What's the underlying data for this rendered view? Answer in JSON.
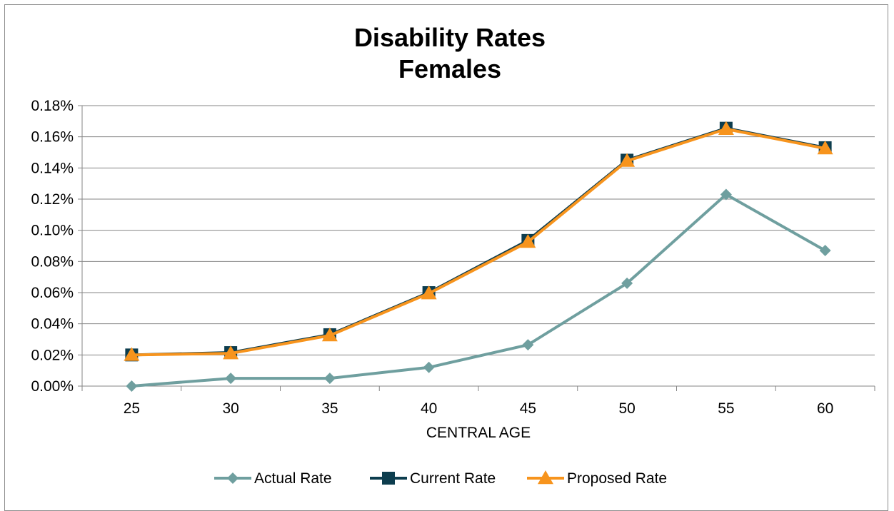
{
  "chart_data": {
    "type": "line",
    "title": [
      "Disability Rates",
      "Females"
    ],
    "xlabel": "CENTRAL AGE",
    "ylabel": "",
    "x": [
      25,
      30,
      35,
      40,
      45,
      50,
      55,
      60
    ],
    "categories": [
      "25",
      "30",
      "35",
      "40",
      "45",
      "50",
      "55",
      "60"
    ],
    "ylim": [
      0,
      0.18
    ],
    "yticks": [
      "0.00%",
      "0.02%",
      "0.04%",
      "0.06%",
      "0.08%",
      "0.10%",
      "0.12%",
      "0.14%",
      "0.16%",
      "0.18%"
    ],
    "y_unit": "percent",
    "grid": true,
    "legend": "bottom",
    "series": [
      {
        "name": "Actual Rate",
        "values": [
          0.0,
          0.005,
          0.005,
          0.012,
          0.0265,
          0.066,
          0.123,
          0.087
        ],
        "color": "#6f9f9f",
        "marker": "diamond"
      },
      {
        "name": "Current Rate",
        "values": [
          0.02,
          0.0215,
          0.033,
          0.06,
          0.0935,
          0.145,
          0.1655,
          0.153
        ],
        "color": "#0d3d4e",
        "marker": "square"
      },
      {
        "name": "Proposed Rate",
        "values": [
          0.02,
          0.021,
          0.0325,
          0.0595,
          0.0925,
          0.1445,
          0.165,
          0.1525
        ],
        "color": "#f7941d",
        "marker": "triangle"
      }
    ]
  }
}
